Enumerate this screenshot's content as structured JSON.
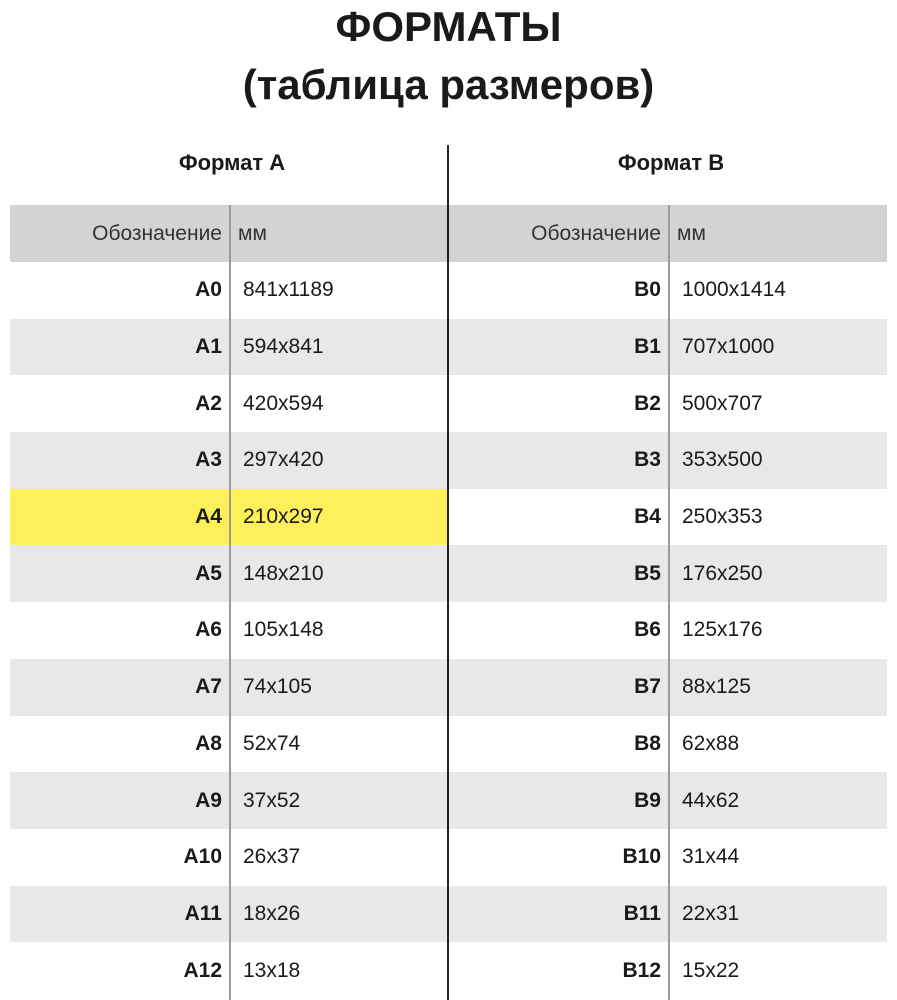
{
  "title_line1": "ФОРМАТЫ",
  "title_line2": "(таблица размеров)",
  "format_a": {
    "heading": "Формат А",
    "col_code": "Обозначение",
    "col_mm": "мм",
    "highlight_color": "#fdf05a",
    "rows": [
      {
        "code": "A0",
        "mm": "841x1189"
      },
      {
        "code": "A1",
        "mm": "594x841"
      },
      {
        "code": "A2",
        "mm": "420x594"
      },
      {
        "code": "A3",
        "mm": "297x420"
      },
      {
        "code": "A4",
        "mm": "210x297",
        "highlighted": true
      },
      {
        "code": "A5",
        "mm": "148x210"
      },
      {
        "code": "A6",
        "mm": "105x148"
      },
      {
        "code": "A7",
        "mm": "74x105"
      },
      {
        "code": "A8",
        "mm": "52x74"
      },
      {
        "code": "A9",
        "mm": "37x52"
      },
      {
        "code": "A10",
        "mm": "26x37"
      },
      {
        "code": "A11",
        "mm": "18x26"
      },
      {
        "code": "A12",
        "mm": "13x18"
      }
    ]
  },
  "format_b": {
    "heading": "Формат В",
    "col_code": "Обозначение",
    "col_mm": "мм",
    "rows": [
      {
        "code": "B0",
        "mm": "1000x1414"
      },
      {
        "code": "B1",
        "mm": "707x1000"
      },
      {
        "code": "B2",
        "mm": "500x707"
      },
      {
        "code": "B3",
        "mm": "353x500"
      },
      {
        "code": "B4",
        "mm": "250x353"
      },
      {
        "code": "B5",
        "mm": "176x250"
      },
      {
        "code": "B6",
        "mm": "125x176"
      },
      {
        "code": "B7",
        "mm": "88x125"
      },
      {
        "code": "B8",
        "mm": "62x88"
      },
      {
        "code": "B9",
        "mm": "44x62"
      },
      {
        "code": "B10",
        "mm": "31x44"
      },
      {
        "code": "B11",
        "mm": "22x31"
      },
      {
        "code": "B12",
        "mm": "15x22"
      }
    ]
  }
}
